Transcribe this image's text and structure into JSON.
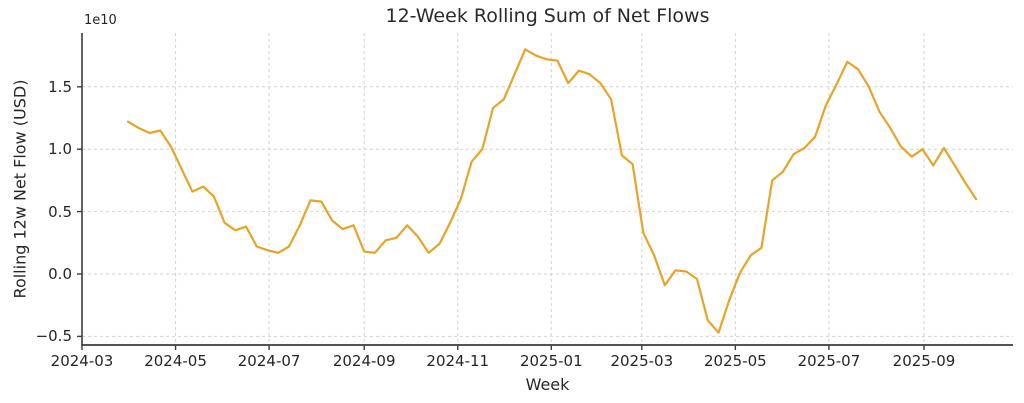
{
  "figure": {
    "title": "12-Week Rolling Sum of Net Flows",
    "x_axis_label": "Week",
    "y_axis_label": "Rolling 12w Net Flow (USD)",
    "y_offset_text": "1e10"
  },
  "axes": {
    "x_tick_labels": [
      "2024-03",
      "2024-05",
      "2024-07",
      "2024-09",
      "2024-11",
      "2025-01",
      "2025-03",
      "2025-05",
      "2025-07",
      "2025-09"
    ],
    "y_ticks": [
      {
        "label": "1.5",
        "value": 1.5
      },
      {
        "label": "1.0",
        "value": 1.0
      },
      {
        "label": "0.5",
        "value": 0.5
      },
      {
        "label": "0.0",
        "value": 0.0
      },
      {
        "label": "−0.5",
        "value": -0.5
      }
    ]
  },
  "chart_data": {
    "type": "line",
    "title": "12-Week Rolling Sum of Net Flows",
    "xlabel": "Week",
    "ylabel": "Rolling 12w Net Flow (USD)",
    "y_units": "values are in units of 1e10 USD (axis offset text 1e10)",
    "xlim": [
      "2024-03-01",
      "2025-10-26"
    ],
    "ylim": [
      -0.57,
      1.93
    ],
    "grid": "both axes, light gray dashed",
    "legend": "none",
    "series": [
      {
        "name": "Rolling 12w Net Flow",
        "color": "#E6A428",
        "x": [
          "2024-03-31",
          "2024-04-07",
          "2024-04-14",
          "2024-04-21",
          "2024-04-28",
          "2024-05-05",
          "2024-05-12",
          "2024-05-19",
          "2024-05-26",
          "2024-06-02",
          "2024-06-09",
          "2024-06-16",
          "2024-06-23",
          "2024-06-30",
          "2024-07-07",
          "2024-07-14",
          "2024-07-21",
          "2024-07-28",
          "2024-08-04",
          "2024-08-11",
          "2024-08-18",
          "2024-08-25",
          "2024-09-01",
          "2024-09-08",
          "2024-09-15",
          "2024-09-22",
          "2024-09-29",
          "2024-10-06",
          "2024-10-13",
          "2024-10-20",
          "2024-10-27",
          "2024-11-03",
          "2024-11-10",
          "2024-11-17",
          "2024-11-24",
          "2024-12-01",
          "2024-12-08",
          "2024-12-15",
          "2024-12-22",
          "2024-12-29",
          "2025-01-05",
          "2025-01-12",
          "2025-01-19",
          "2025-01-26",
          "2025-02-02",
          "2025-02-09",
          "2025-02-16",
          "2025-02-23",
          "2025-03-02",
          "2025-03-09",
          "2025-03-16",
          "2025-03-23",
          "2025-03-30",
          "2025-04-06",
          "2025-04-13",
          "2025-04-20",
          "2025-04-27",
          "2025-05-04",
          "2025-05-11",
          "2025-05-18",
          "2025-05-25",
          "2025-06-01",
          "2025-06-08",
          "2025-06-15",
          "2025-06-22",
          "2025-06-29",
          "2025-07-06",
          "2025-07-13",
          "2025-07-20",
          "2025-07-27",
          "2025-08-03",
          "2025-08-10",
          "2025-08-17",
          "2025-08-24",
          "2025-08-31",
          "2025-09-07",
          "2025-09-14",
          "2025-09-21",
          "2025-09-28",
          "2025-10-05"
        ],
        "y": [
          1.22,
          1.17,
          1.13,
          1.15,
          1.02,
          0.84,
          0.66,
          0.7,
          0.62,
          0.41,
          0.35,
          0.38,
          0.22,
          0.19,
          0.17,
          0.22,
          0.39,
          0.59,
          0.58,
          0.43,
          0.36,
          0.39,
          0.18,
          0.17,
          0.27,
          0.29,
          0.39,
          0.3,
          0.17,
          0.24,
          0.41,
          0.6,
          0.9,
          1.0,
          1.33,
          1.4,
          1.6,
          1.8,
          1.75,
          1.72,
          1.71,
          1.53,
          1.63,
          1.6,
          1.53,
          1.4,
          0.95,
          0.88,
          0.33,
          0.15,
          -0.09,
          0.03,
          0.02,
          -0.04,
          -0.37,
          -0.47,
          -0.21,
          0.01,
          0.15,
          0.21,
          0.75,
          0.82,
          0.96,
          1.01,
          1.1,
          1.35,
          1.52,
          1.7,
          1.64,
          1.5,
          1.3,
          1.17,
          1.02,
          0.94,
          1.0,
          0.87,
          1.01,
          0.87,
          0.73,
          0.6
        ]
      }
    ],
    "style": {
      "line_color": "#E6A428",
      "grid_color": "#d2d2d2",
      "spine_color": "#3c3c3c",
      "text_color": "#262626"
    }
  }
}
